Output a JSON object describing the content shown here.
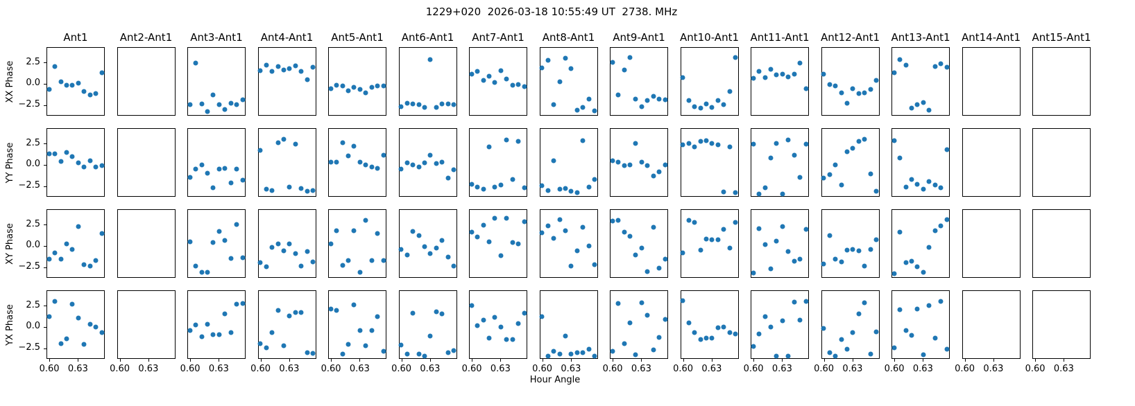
{
  "chart_data": {
    "type": "scatter",
    "title": "1229+020  2026-03-18 10:55:49 UT  2738. MHz",
    "xlabel": "Hour Angle",
    "marker_color": "#1f77b4",
    "grid": false,
    "rows": [
      "XX Phase",
      "YY Phase",
      "XY Phase",
      "YX Phase"
    ],
    "columns": [
      "Ant1",
      "Ant2-Ant1",
      "Ant3-Ant1",
      "Ant4-Ant1",
      "Ant5-Ant1",
      "Ant6-Ant1",
      "Ant7-Ant1",
      "Ant8-Ant1",
      "Ant9-Ant1",
      "Ant10-Ant1",
      "Ant11-Ant1",
      "Ant12-Ant1",
      "Ant13-Ant1",
      "Ant14-Ant1",
      "Ant15-Ant1"
    ],
    "xticks": [
      0.6,
      0.63
    ],
    "yticks": [
      2.5,
      0.0,
      -2.5
    ],
    "xlim": [
      0.597,
      0.658
    ],
    "ylim": [
      -3.75,
      4.3
    ],
    "x_start": 0.599,
    "x_end": 0.654,
    "panels": [
      [
        [
          -0.55,
          2.1,
          0.3,
          -0.1,
          -0.1,
          0.15,
          -0.8,
          -1.2,
          -1.05,
          1.4
        ],
        [],
        [
          -2.4,
          2.5,
          -2.3,
          -3.2,
          -1.2,
          -2.4,
          -2.9,
          -2.2,
          -2.4,
          -1.8
        ],
        [
          1.6,
          2.3,
          1.5,
          2.1,
          1.7,
          1.9,
          2.2,
          1.5,
          0.6,
          2.0
        ],
        [
          -0.5,
          -0.1,
          -0.2,
          -0.7,
          -0.3,
          -0.6,
          -1.0,
          -0.3,
          -0.2,
          -0.2
        ],
        [
          -2.6,
          -2.2,
          -2.3,
          -2.4,
          -2.7,
          2.9,
          -2.7,
          -2.3,
          -2.3,
          -2.4
        ],
        [
          1.2,
          1.5,
          0.45,
          1.0,
          0.25,
          1.6,
          0.65,
          -0.1,
          0.0,
          -0.25
        ],
        [
          1.95,
          2.8,
          -2.4,
          0.35,
          3.1,
          1.9,
          -3.0,
          -2.7,
          -1.7,
          -3.1
        ],
        [
          2.6,
          -1.2,
          1.7,
          3.2,
          -1.7,
          -2.6,
          -1.85,
          -1.4,
          -1.7,
          -1.8
        ],
        [
          0.8,
          -1.9,
          -2.6,
          -2.8,
          -2.3,
          -2.7,
          -1.9,
          -2.4,
          -0.8,
          3.2
        ],
        [
          0.7,
          1.5,
          0.8,
          1.8,
          1.1,
          1.2,
          0.9,
          1.2,
          2.5,
          -0.5
        ],
        [
          1.2,
          0.0,
          -0.2,
          -1.0,
          -2.2,
          -0.5,
          -1.1,
          -1.0,
          -0.6,
          0.5
        ],
        [
          1.4,
          2.9,
          2.3,
          -2.8,
          -2.4,
          -2.1,
          -3.0,
          2.1,
          2.4,
          2.0
        ],
        [],
        []
      ],
      [
        [
          1.4,
          1.35,
          0.45,
          1.55,
          1.05,
          0.35,
          -0.2,
          0.6,
          -0.15,
          0.0
        ],
        [],
        [
          -1.4,
          -0.4,
          0.1,
          -0.9,
          -2.6,
          -0.4,
          -0.35,
          -2.0,
          -0.4,
          -1.7
        ],
        [
          1.8,
          -2.75,
          -2.95,
          2.7,
          3.05,
          -2.5,
          2.5,
          -2.7,
          -3.0,
          -2.95
        ],
        [
          0.4,
          0.4,
          2.7,
          1.1,
          2.3,
          0.4,
          0.1,
          -0.2,
          -0.3,
          1.2
        ],
        [
          -0.4,
          0.3,
          0.1,
          -0.2,
          0.3,
          1.2,
          0.2,
          0.4,
          -1.5,
          -0.5
        ],
        [
          -2.2,
          -2.5,
          -2.8,
          2.2,
          -2.5,
          -2.3,
          3.0,
          -1.6,
          2.85,
          -2.6
        ],
        [
          -2.4,
          -2.9,
          0.6,
          -2.8,
          -2.7,
          -3.0,
          -3.2,
          2.9,
          -2.5,
          -1.6
        ],
        [
          0.6,
          0.4,
          0.0,
          0.1,
          2.6,
          0.4,
          0.0,
          -1.2,
          -0.7,
          0.1
        ],
        [
          2.4,
          2.6,
          2.2,
          2.8,
          2.9,
          2.6,
          2.4,
          -3.1,
          2.2,
          -3.2
        ],
        [
          2.5,
          -3.3,
          -2.6,
          0.9,
          2.6,
          -3.3,
          3.0,
          1.2,
          -1.4,
          2.5
        ],
        [
          -1.5,
          -1.1,
          0.1,
          -2.3,
          1.6,
          2.0,
          2.8,
          3.1,
          -1.0,
          -3.0
        ],
        [
          2.9,
          0.9,
          -2.5,
          -1.6,
          -2.2,
          -2.8,
          -1.9,
          -2.3,
          -2.6,
          1.9
        ],
        [],
        []
      ],
      [
        [
          -1.5,
          -0.75,
          -1.45,
          0.3,
          -0.35,
          2.35,
          -2.1,
          -2.3,
          -1.6,
          1.55
        ],
        [],
        [
          0.6,
          -2.3,
          -3.0,
          -3.0,
          0.45,
          1.8,
          0.75,
          -1.4,
          2.6,
          -1.3
        ],
        [
          -1.9,
          -2.4,
          -0.1,
          0.3,
          -0.5,
          0.3,
          -0.8,
          -2.3,
          -0.6,
          -1.8
        ],
        [
          0.3,
          1.85,
          -2.2,
          -1.6,
          1.9,
          -3.0,
          3.1,
          -1.6,
          1.5,
          -1.6
        ],
        [
          -0.3,
          -1.0,
          1.8,
          1.3,
          0.0,
          -0.8,
          -0.2,
          0.7,
          -1.2,
          -2.3
        ],
        [
          1.7,
          1.1,
          2.5,
          0.6,
          3.3,
          -1.1,
          3.3,
          0.5,
          0.3,
          2.9
        ],
        [
          1.6,
          2.4,
          1.0,
          3.2,
          1.9,
          -2.3,
          -0.5,
          2.3,
          0.1,
          -2.1
        ],
        [
          3.0,
          3.1,
          1.7,
          1.2,
          -1.0,
          -0.2,
          -2.9,
          2.3,
          -2.5,
          -1.5
        ],
        [
          -0.7,
          3.1,
          2.8,
          -0.4,
          0.9,
          0.8,
          0.8,
          2.0,
          -0.2,
          2.8
        ],
        [
          -3.1,
          2.1,
          0.2,
          -2.6,
          0.65,
          2.35,
          -0.55,
          -1.75,
          -1.45,
          2.0
        ],
        [
          -2.0,
          1.3,
          -1.5,
          -1.8,
          -0.4,
          -0.3,
          -0.5,
          -2.3,
          -0.3,
          0.8
        ],
        [
          -3.2,
          1.7,
          -1.9,
          -1.7,
          -2.4,
          -3.0,
          -0.1,
          1.9,
          2.4,
          3.2
        ],
        [],
        []
      ],
      [
        [
          1.3,
          3.1,
          -1.9,
          -1.3,
          2.75,
          1.1,
          -1.95,
          0.4,
          0.1,
          -0.55
        ],
        [],
        [
          -0.35,
          0.35,
          -1.05,
          0.4,
          -0.8,
          -0.85,
          1.65,
          -0.55,
          2.75,
          2.8
        ],
        [
          -1.9,
          -2.35,
          -0.55,
          2.0,
          -2.1,
          1.35,
          1.8,
          1.8,
          -2.9,
          -3.0
        ],
        [
          2.2,
          2.0,
          -3.1,
          -1.95,
          2.7,
          -0.3,
          -2.1,
          -0.3,
          1.3,
          -2.8
        ],
        [
          -2.0,
          -3.1,
          1.7,
          -3.1,
          -3.3,
          -1.0,
          1.9,
          1.65,
          -2.9,
          -2.7
        ],
        [
          2.6,
          0.2,
          0.9,
          -1.2,
          1.2,
          0.1,
          -1.4,
          -1.4,
          0.5,
          1.7
        ],
        [
          1.3,
          -3.3,
          -2.8,
          -3.1,
          -1.0,
          -3.1,
          -2.9,
          -2.9,
          -2.5,
          -3.3
        ],
        [
          -2.8,
          2.8,
          -1.85,
          0.6,
          -3.2,
          2.9,
          1.45,
          -2.6,
          -1.15,
          1.0
        ],
        [
          3.2,
          0.6,
          -0.6,
          -1.35,
          -1.25,
          -1.2,
          0.0,
          0.1,
          -0.6,
          -0.7
        ],
        [
          -2.2,
          -0.7,
          1.3,
          0.1,
          -3.3,
          0.8,
          -3.3,
          3.0,
          0.85,
          3.1
        ],
        [
          -0.1,
          -2.9,
          -3.3,
          -1.4,
          -2.5,
          -0.6,
          1.6,
          2.9,
          -3.1,
          -0.5
        ],
        [
          -2.4,
          2.1,
          -0.3,
          -0.9,
          2.2,
          -3.2,
          2.6,
          -1.2,
          3.1,
          -2.5
        ],
        [],
        []
      ]
    ]
  }
}
